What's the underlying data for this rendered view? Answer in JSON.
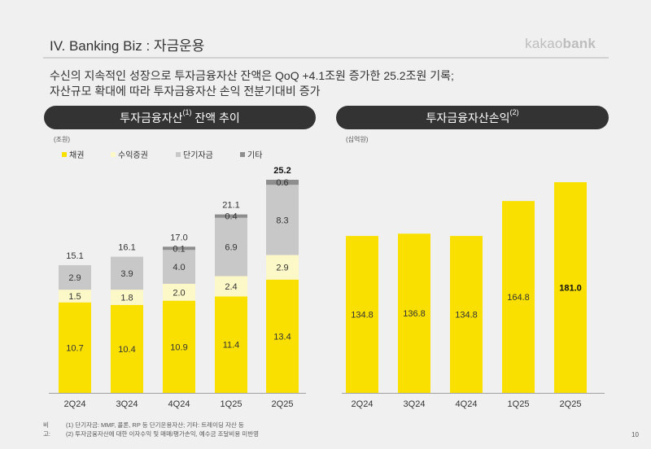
{
  "header": {
    "title": "IV. Banking Biz : 자금운용",
    "logo_light": "kakao",
    "logo_bold": "bank"
  },
  "summary": {
    "line1": "수신의 지속적인 성장으로 투자금융자산 잔액은 QoQ +4.1조원 증가한 25.2조원 기록;",
    "line2": "자산규모 확대에 따라 투자금융자산 손익 전분기대비 증가"
  },
  "left_panel": {
    "title_main": "투자금융자산",
    "title_sup": "(1)",
    "title_rest": " 잔액 추이",
    "unit": "(조원)"
  },
  "right_panel": {
    "title_main": "투자금융자산손익",
    "title_sup": "(2)",
    "unit": "(십억원)"
  },
  "colors": {
    "bonds": "#f9e000",
    "beneficiary": "#fdf8c8",
    "short_term": "#c8c8c8",
    "other": "#8e8e8e",
    "pill_bg": "#333333",
    "axis": "#a0a0a0"
  },
  "chart_data": [
    {
      "type": "bar",
      "stacked": true,
      "title": "투자금융자산 잔액 추이",
      "ylabel": "(조원)",
      "categories": [
        "2Q24",
        "3Q24",
        "4Q24",
        "1Q25",
        "2Q25"
      ],
      "series": [
        {
          "name": "채권",
          "key": "bonds",
          "values": [
            10.7,
            10.4,
            10.9,
            11.4,
            13.4
          ]
        },
        {
          "name": "수익증권",
          "key": "beneficiary",
          "values": [
            1.5,
            1.8,
            2.0,
            2.4,
            2.9
          ]
        },
        {
          "name": "단기자금",
          "key": "short_term",
          "values": [
            2.9,
            3.9,
            4.0,
            6.9,
            8.3
          ]
        },
        {
          "name": "기타",
          "key": "other",
          "values": [
            null,
            null,
            0.1,
            0.4,
            0.6
          ]
        }
      ],
      "totals": [
        "15.1",
        "16.1",
        "17.0",
        "21.1",
        "25.2"
      ],
      "highlight_total_index": 4,
      "ylim": [
        0,
        26
      ],
      "legend": "top-left",
      "grid": false
    },
    {
      "type": "bar",
      "title": "투자금융자산손익",
      "ylabel": "(십억원)",
      "categories": [
        "2Q24",
        "3Q24",
        "4Q24",
        "1Q25",
        "2Q25"
      ],
      "values": [
        134.8,
        136.8,
        134.8,
        164.8,
        181.0
      ],
      "labels": [
        "134.8",
        "136.8",
        "134.8",
        "164.8",
        "181.0"
      ],
      "highlight_index": 4,
      "ylim": [
        0,
        190
      ],
      "grid": false
    }
  ],
  "footnotes": {
    "label": "비고:",
    "note1": "(1) 단기자금: MMF, 콜론, RP 등 단기운용자산; 기타: 트레이딩 자산 등",
    "note2": "(2) 투자금융자산에 대한 이자수익 및 매매/평가손익, 예수금 조달비용 미반영"
  },
  "page_number": "10"
}
